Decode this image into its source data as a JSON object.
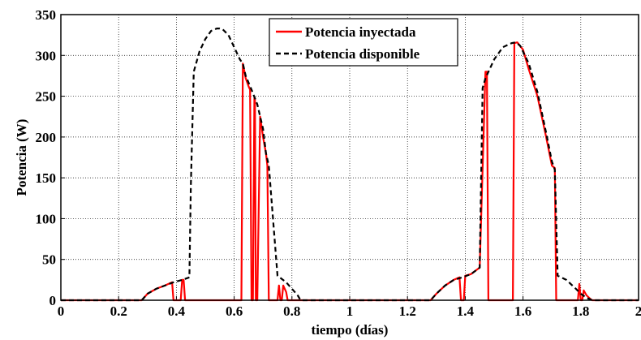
{
  "chart_data": {
    "type": "line",
    "title": "",
    "xlabel": "tiempo (días)",
    "ylabel": "Potencia (W)",
    "xlim": [
      0,
      2
    ],
    "ylim": [
      0,
      350
    ],
    "xticks": [
      "0",
      "0.2",
      "0.4",
      "0.6",
      "0.8",
      "1",
      "1.2",
      "1.4",
      "1.6",
      "1.8",
      "2"
    ],
    "yticks": [
      "0",
      "50",
      "100",
      "150",
      "200",
      "250",
      "300",
      "350"
    ],
    "grid": true,
    "legend_position": "top-center",
    "series": [
      {
        "name": "Potencia inyectada",
        "color": "#ff0000",
        "style": "solid",
        "x": [
          0,
          0.28,
          0.3,
          0.33,
          0.36,
          0.385,
          0.39,
          0.395,
          0.4,
          0.415,
          0.42,
          0.425,
          0.43,
          0.625,
          0.63,
          0.64,
          0.65,
          0.655,
          0.66,
          0.665,
          0.67,
          0.672,
          0.675,
          0.68,
          0.69,
          0.7,
          0.71,
          0.715,
          0.72,
          0.73,
          0.75,
          0.755,
          0.76,
          0.765,
          0.77,
          0.78,
          0.785,
          0.79,
          0.8,
          0.82,
          0.83,
          1.28,
          1.3,
          1.33,
          1.36,
          1.38,
          1.385,
          1.39,
          1.395,
          1.4,
          1.42,
          1.45,
          1.47,
          1.475,
          1.48,
          1.485,
          1.565,
          1.57,
          1.58,
          1.6,
          1.62,
          1.65,
          1.68,
          1.7,
          1.71,
          1.715,
          1.72,
          1.73,
          1.75,
          1.77,
          1.79,
          1.795,
          1.8,
          1.805,
          1.81,
          1.82,
          1.835,
          1.84,
          2
        ],
        "y": [
          0,
          0,
          8,
          14,
          18,
          22,
          0,
          0,
          0,
          0,
          25,
          25,
          0,
          0,
          290,
          272,
          262,
          258,
          0,
          0,
          248,
          248,
          0,
          0,
          225,
          200,
          180,
          165,
          0,
          0,
          0,
          18,
          0,
          0,
          18,
          10,
          0,
          0,
          0,
          0,
          0,
          0,
          8,
          18,
          25,
          28,
          0,
          0,
          0,
          30,
          32,
          40,
          280,
          280,
          0,
          0,
          0,
          315,
          316,
          307,
          283,
          250,
          200,
          165,
          162,
          0,
          0,
          0,
          0,
          0,
          0,
          20,
          0,
          0,
          12,
          6,
          1,
          0,
          0
        ]
      },
      {
        "name": "Potencia disponible",
        "color": "#000000",
        "style": "dashed",
        "x": [
          0,
          0.28,
          0.3,
          0.33,
          0.36,
          0.39,
          0.42,
          0.445,
          0.45,
          0.46,
          0.48,
          0.5,
          0.52,
          0.54,
          0.55,
          0.56,
          0.58,
          0.6,
          0.62,
          0.63,
          0.64,
          0.66,
          0.68,
          0.7,
          0.71,
          0.72,
          0.75,
          0.78,
          0.8,
          0.82,
          0.83,
          1.28,
          1.3,
          1.33,
          1.36,
          1.39,
          1.42,
          1.45,
          1.46,
          1.47,
          1.5,
          1.53,
          1.56,
          1.575,
          1.59,
          1.62,
          1.65,
          1.68,
          1.7,
          1.71,
          1.72,
          1.75,
          1.78,
          1.8,
          1.82,
          1.84,
          2
        ],
        "y": [
          0,
          0,
          8,
          14,
          18,
          22,
          25,
          28,
          140,
          280,
          305,
          320,
          330,
          333,
          333,
          332,
          325,
          310,
          295,
          290,
          275,
          258,
          240,
          210,
          180,
          165,
          30,
          22,
          14,
          6,
          0,
          0,
          8,
          18,
          25,
          28,
          32,
          40,
          260,
          272,
          295,
          310,
          315,
          316,
          312,
          290,
          255,
          205,
          170,
          160,
          30,
          25,
          15,
          8,
          3,
          0,
          0
        ]
      }
    ]
  }
}
